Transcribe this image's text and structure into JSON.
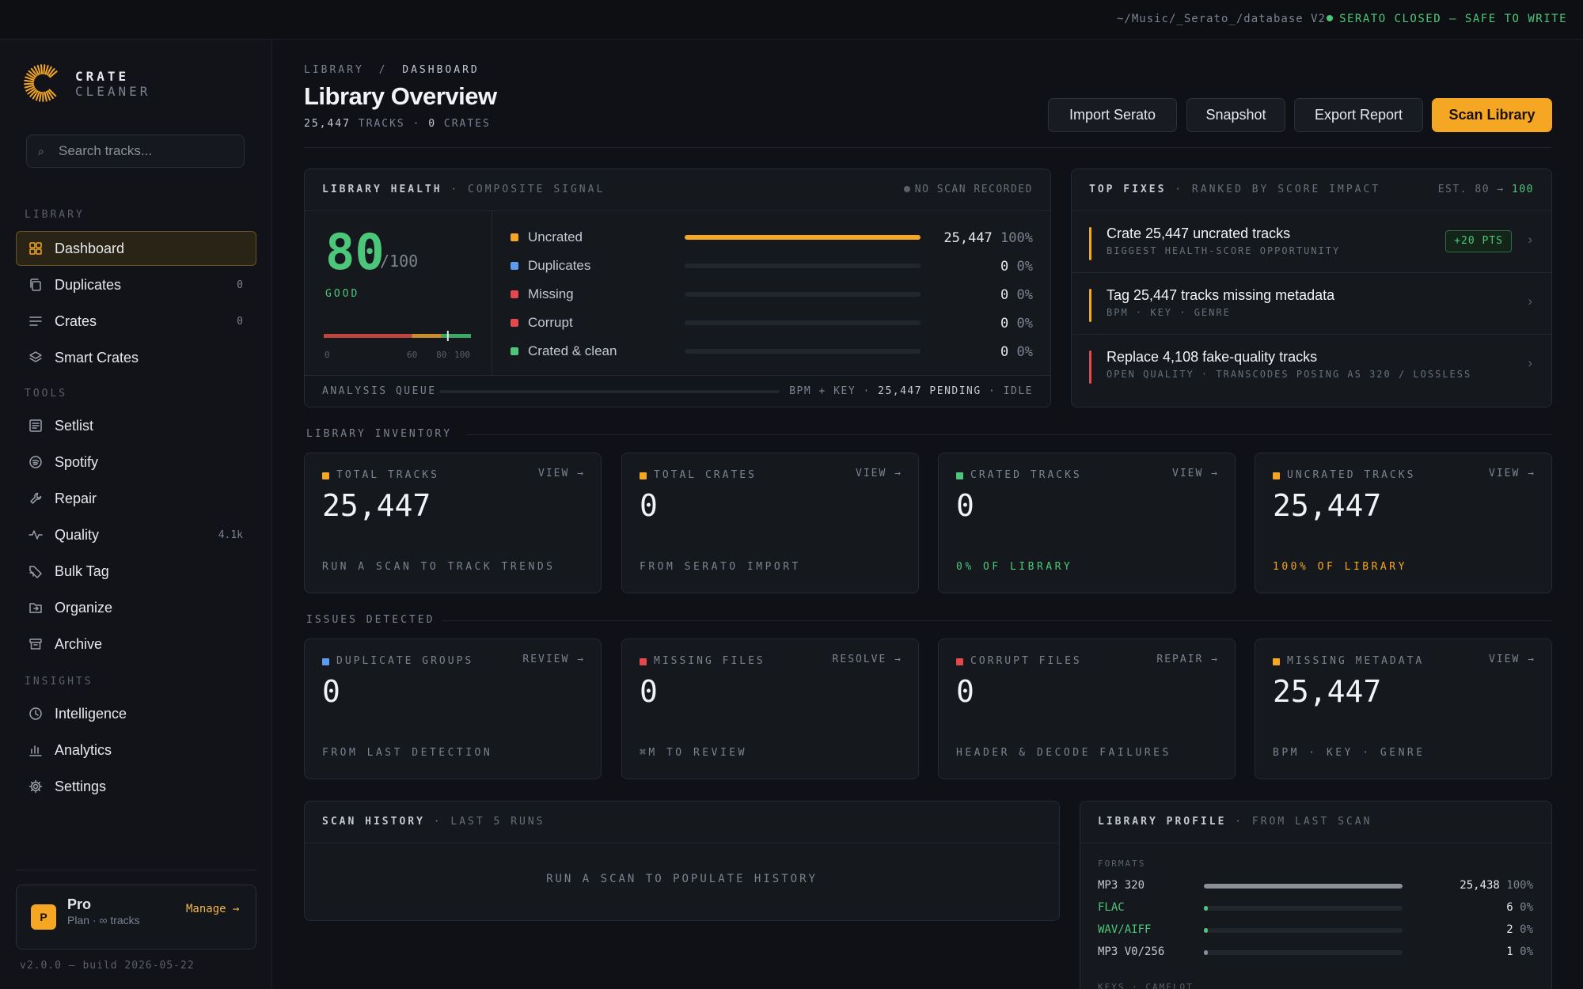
{
  "topbar": {
    "path": "~/Music/_Serato_/database V2",
    "status": "SERATO CLOSED — SAFE TO WRITE"
  },
  "brand": {
    "line1": "CRATE",
    "line2": "CLEANER"
  },
  "search": {
    "placeholder": "Search tracks..."
  },
  "sidebar": {
    "sections": [
      "LIBRARY",
      "TOOLS",
      "INSIGHTS"
    ],
    "library": [
      {
        "label": "Dashboard",
        "count": "",
        "icon": "grid-icon"
      },
      {
        "label": "Duplicates",
        "count": "0",
        "icon": "copy-icon"
      },
      {
        "label": "Crates",
        "count": "0",
        "icon": "list-icon"
      },
      {
        "label": "Smart Crates",
        "count": "",
        "icon": "layers-icon"
      }
    ],
    "tools": [
      {
        "label": "Setlist",
        "count": "",
        "icon": "setlist-icon"
      },
      {
        "label": "Spotify",
        "count": "",
        "icon": "spotify-icon"
      },
      {
        "label": "Repair",
        "count": "",
        "icon": "wrench-icon"
      },
      {
        "label": "Quality",
        "count": "4.1k",
        "icon": "pulse-icon"
      },
      {
        "label": "Bulk Tag",
        "count": "",
        "icon": "tag-icon"
      },
      {
        "label": "Organize",
        "count": "",
        "icon": "folder-icon"
      },
      {
        "label": "Archive",
        "count": "",
        "icon": "archive-icon"
      }
    ],
    "insights": [
      {
        "label": "Intelligence",
        "count": "",
        "icon": "clock-icon"
      },
      {
        "label": "Analytics",
        "count": "",
        "icon": "bar-chart-icon"
      },
      {
        "label": "Settings",
        "count": "",
        "icon": "gear-icon"
      }
    ],
    "plan": {
      "badge": "P",
      "name": "Pro",
      "sub": "Plan · ∞ tracks",
      "manage": "Manage →"
    },
    "version": "v2.0.0 — build 2026-05-22"
  },
  "header": {
    "crumb_root": "LIBRARY",
    "crumb_sep": "/",
    "crumb_current": "DASHBOARD",
    "title": "Library Overview",
    "tracks_count": "25,447",
    "tracks_label": "TRACKS",
    "sep": "·",
    "crates_count": "0",
    "crates_label": "CRATES",
    "buttons": [
      "Import Serato",
      "Snapshot",
      "Export Report",
      "Scan Library"
    ]
  },
  "health": {
    "title": "LIBRARY HEALTH",
    "subtitle": "· COMPOSITE SIGNAL",
    "status": "NO SCAN RECORDED",
    "score": "80",
    "of": "/100",
    "grade": "GOOD",
    "score_fraction": 0.8,
    "scale_ticks": [
      "0",
      "60",
      "80",
      "100"
    ],
    "rows": [
      {
        "label": "Uncrated",
        "value": "25,447",
        "pct": "100%",
        "fraction": 1.0,
        "color": "#f5a623"
      },
      {
        "label": "Duplicates",
        "value": "0",
        "pct": "0%",
        "fraction": 0,
        "color": "#5b9cf0"
      },
      {
        "label": "Missing",
        "value": "0",
        "pct": "0%",
        "fraction": 0,
        "color": "#e5484d"
      },
      {
        "label": "Corrupt",
        "value": "0",
        "pct": "0%",
        "fraction": 0,
        "color": "#e5484d"
      },
      {
        "label": "Crated & clean",
        "value": "0",
        "pct": "0%",
        "fraction": 0,
        "color": "#4cc77a"
      }
    ],
    "queue_label": "ANALYSIS QUEUE",
    "queue_detail": "BPM + KEY ·",
    "queue_pending": "25,447 PENDING",
    "queue_state": "· IDLE"
  },
  "fixes": {
    "title": "TOP FIXES",
    "subtitle": "· RANKED BY SCORE IMPACT",
    "est": "EST. 80 →",
    "est_target": "100",
    "items": [
      {
        "title": "Crate 25,447 uncrated tracks",
        "sub": "BIGGEST HEALTH-SCORE OPPORTUNITY",
        "pts": "+20 PTS",
        "color": "#f5a623"
      },
      {
        "title": "Tag 25,447 tracks missing metadata",
        "sub": "BPM · KEY · GENRE",
        "pts": "",
        "color": "#f5a623"
      },
      {
        "title": "Replace 4,108 fake-quality tracks",
        "sub": "OPEN QUALITY · TRANSCODES POSING AS 320 / LOSSLESS",
        "pts": "",
        "color": "#e5484d"
      }
    ]
  },
  "inventory": {
    "label": "LIBRARY INVENTORY",
    "cards": [
      {
        "title": "TOTAL TRACKS",
        "action": "VIEW →",
        "value": "25,447",
        "foot": "RUN A SCAN TO TRACK TRENDS",
        "color": "#f5a623",
        "foot_color": "#7c8290"
      },
      {
        "title": "TOTAL CRATES",
        "action": "VIEW →",
        "value": "0",
        "foot": "FROM SERATO IMPORT",
        "color": "#f5a623",
        "foot_color": "#7c8290"
      },
      {
        "title": "CRATED TRACKS",
        "action": "VIEW →",
        "value": "0",
        "foot": "0% OF LIBRARY",
        "color": "#4cc77a",
        "foot_color": "#4cc77a"
      },
      {
        "title": "UNCRATED TRACKS",
        "action": "VIEW →",
        "value": "25,447",
        "foot": "100% OF LIBRARY",
        "color": "#f5a623",
        "foot_color": "#f5a623"
      }
    ]
  },
  "issues": {
    "label": "ISSUES DETECTED",
    "cards": [
      {
        "title": "DUPLICATE GROUPS",
        "action": "REVIEW →",
        "value": "0",
        "foot": "FROM LAST DETECTION",
        "color": "#5b9cf0",
        "foot_color": "#7c8290"
      },
      {
        "title": "MISSING FILES",
        "action": "RESOLVE →",
        "value": "0",
        "foot": "⌘M TO REVIEW",
        "color": "#e5484d",
        "foot_color": "#7c8290"
      },
      {
        "title": "CORRUPT FILES",
        "action": "REPAIR →",
        "value": "0",
        "foot": "HEADER & DECODE FAILURES",
        "color": "#e5484d",
        "foot_color": "#7c8290"
      },
      {
        "title": "MISSING METADATA",
        "action": "VIEW →",
        "value": "25,447",
        "foot": "BPM · KEY · GENRE",
        "color": "#f5a623",
        "foot_color": "#7c8290"
      }
    ]
  },
  "history": {
    "title": "SCAN HISTORY",
    "subtitle": "· LAST 5 RUNS",
    "empty": "RUN A SCAN TO POPULATE HISTORY"
  },
  "profile": {
    "title": "LIBRARY PROFILE",
    "subtitle": "· FROM LAST SCAN",
    "formats_label": "FORMATS",
    "formats": [
      {
        "label": "MP3 320",
        "value": "25,438",
        "pct": "100%",
        "fraction": 1.0,
        "color": "#c4c8d0",
        "bar": "#8a8f99"
      },
      {
        "label": "FLAC",
        "value": "6",
        "pct": "0%",
        "fraction": 0.02,
        "color": "#4cc77a",
        "bar": "#4cc77a"
      },
      {
        "label": "WAV/AIFF",
        "value": "2",
        "pct": "0%",
        "fraction": 0.02,
        "color": "#4cc77a",
        "bar": "#4cc77a"
      },
      {
        "label": "MP3 V0/256",
        "value": "1",
        "pct": "0%",
        "fraction": 0.02,
        "color": "#c4c8d0",
        "bar": "#8a8f99"
      }
    ],
    "keys_label": "KEYS · CAMELOT"
  }
}
